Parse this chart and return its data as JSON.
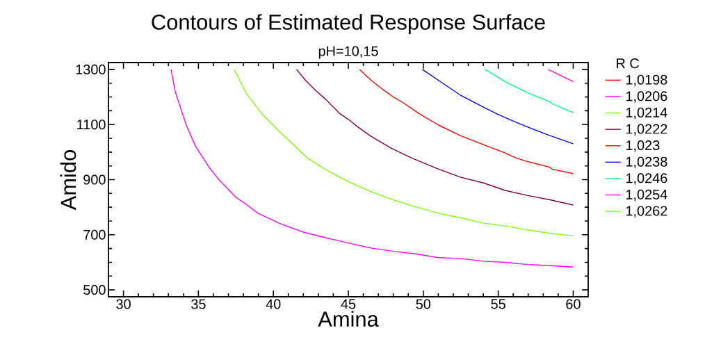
{
  "chart_data": {
    "type": "line",
    "title": "Contours of Estimated Response Surface",
    "subtitle": "pH=10,15",
    "xlabel": "Amina",
    "ylabel": "Amido",
    "legend_title": "R C",
    "legend": "right",
    "grid": false,
    "marker": "none",
    "line_style": "solid",
    "xlim": [
      29,
      61
    ],
    "ylim": [
      475,
      1325
    ],
    "xticks": [
      30,
      35,
      40,
      45,
      50,
      55,
      60
    ],
    "yticks": [
      500,
      700,
      900,
      1100,
      1300
    ],
    "series": [
      {
        "name": "1,0198",
        "color": "#ff0000"
      },
      {
        "name": "1,0206",
        "color": "#ff00ff",
        "x": [
          33.18,
          33.45,
          33.83,
          34.19,
          34.8,
          35.75,
          36.37,
          37.52,
          38.05,
          38.97,
          40.51,
          42.04,
          43.42,
          44.04,
          46.49,
          48.03,
          49.56,
          51.02,
          52.47,
          54.01,
          55.46,
          56.92,
          58.45,
          60
        ],
        "values": [
          1300,
          1220,
          1157,
          1098,
          1022,
          942,
          900,
          835,
          816,
          778,
          739,
          709,
          690,
          682,
          652,
          640,
          630,
          617,
          614,
          604,
          600,
          592,
          588,
          583
        ]
      },
      {
        "name": "1,0214",
        "color": "#80ff00",
        "x": [
          37.36,
          37.59,
          38.2,
          39.28,
          40.51,
          41.43,
          42.27,
          43.35,
          44.04,
          45.03,
          46.49,
          48.03,
          49.56,
          51.02,
          52.47,
          54.01,
          55.46,
          56.92,
          58.45,
          60
        ],
        "values": [
          1300,
          1279,
          1212,
          1136,
          1069,
          1022,
          978,
          941,
          920,
          892,
          857,
          826,
          800,
          778,
          762,
          742,
          732,
          718,
          705,
          696
        ]
      },
      {
        "name": "1,0222",
        "color": "#800040",
        "x": [
          41.55,
          42.12,
          42.81,
          43.5,
          44.42,
          45.03,
          45.57,
          46.49,
          47.87,
          49.25,
          51.02,
          52.47,
          54.01,
          55.46,
          56.92,
          58.45,
          60
        ],
        "values": [
          1300,
          1262,
          1224,
          1191,
          1140,
          1118,
          1094,
          1058,
          1014,
          978,
          938,
          909,
          888,
          861,
          843,
          827,
          808
        ]
      },
      {
        "name": "1,023",
        "color": "#ff0000",
        "x": [
          45.75,
          46.57,
          47.26,
          48.03,
          48.64,
          49.71,
          51.02,
          52.47,
          54.01,
          55.46,
          56.23,
          56.92,
          58.45,
          58.58,
          60
        ],
        "values": [
          1300,
          1258,
          1229,
          1199,
          1180,
          1140,
          1098,
          1060,
          1027,
          997,
          978,
          966,
          945,
          938,
          922
        ]
      },
      {
        "name": "1,0238",
        "color": "#0000ff",
        "x": [
          49.94,
          51.02,
          52.47,
          54.01,
          54.93,
          56.15,
          56.92,
          58.45,
          60
        ],
        "values": [
          1300,
          1260,
          1207,
          1163,
          1138,
          1109,
          1092,
          1060,
          1030
        ]
      },
      {
        "name": "1,0246",
        "color": "#00ff80",
        "x": [
          54.13,
          55.51,
          56.92,
          58.45,
          58.58,
          60
        ],
        "values": [
          1300,
          1254,
          1216,
          1182,
          1176,
          1143
        ]
      },
      {
        "name": "1,0254",
        "color": "#ff00ff",
        "x": [
          58.33,
          60
        ],
        "values": [
          1300,
          1256
        ]
      },
      {
        "name": "1,0262",
        "color": "#80ff00"
      }
    ]
  }
}
